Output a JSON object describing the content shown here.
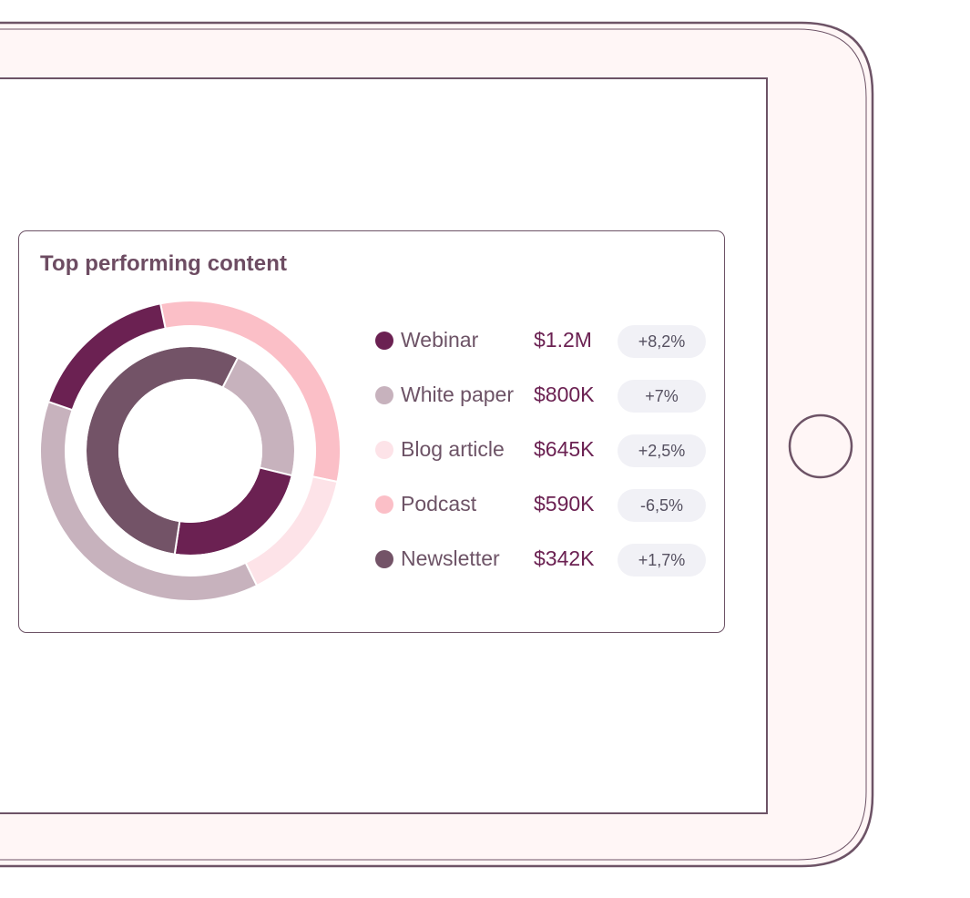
{
  "colors": {
    "frame_fill": "#fff6f6",
    "frame_stroke": "#6d5366",
    "screen_fill": "#ffffff",
    "value_text": "#6b2152",
    "badge_bg": "#f1f1f6"
  },
  "card": {
    "title": "Top performing content"
  },
  "chart_data": {
    "type": "pie",
    "title": "Top performing content",
    "categories": [
      "Webinar",
      "White paper",
      "Blog article",
      "Podcast",
      "Newsletter"
    ],
    "colors": {
      "Webinar": "#6b2152",
      "White paper": "#c7b2bd",
      "Blog article": "#fde3e8",
      "Podcast": "#fbbfc7",
      "Newsletter": "#735367"
    },
    "outer_ring": [
      {
        "label": "Podcast",
        "percent": 31.5
      },
      {
        "label": "Blog article",
        "percent": 14.4
      },
      {
        "label": "White paper",
        "percent": 37.6
      },
      {
        "label": "Webinar",
        "percent": 16.5
      }
    ],
    "inner_ring": [
      {
        "label": "White paper",
        "percent": 21.3
      },
      {
        "label": "Webinar",
        "percent": 23.6
      },
      {
        "label": "Newsletter",
        "percent": 55.1
      }
    ],
    "legend": [
      {
        "label": "Webinar",
        "value": "$1.2M",
        "change": "+8,2%"
      },
      {
        "label": "White paper",
        "value": "$800K",
        "change": "+7%"
      },
      {
        "label": "Blog article",
        "value": "$645K",
        "change": "+2,5%"
      },
      {
        "label": "Podcast",
        "value": "$590K",
        "change": "-6,5%"
      },
      {
        "label": "Newsletter",
        "value": "$342K",
        "change": "+1,7%"
      }
    ],
    "legend_placement": "right"
  }
}
